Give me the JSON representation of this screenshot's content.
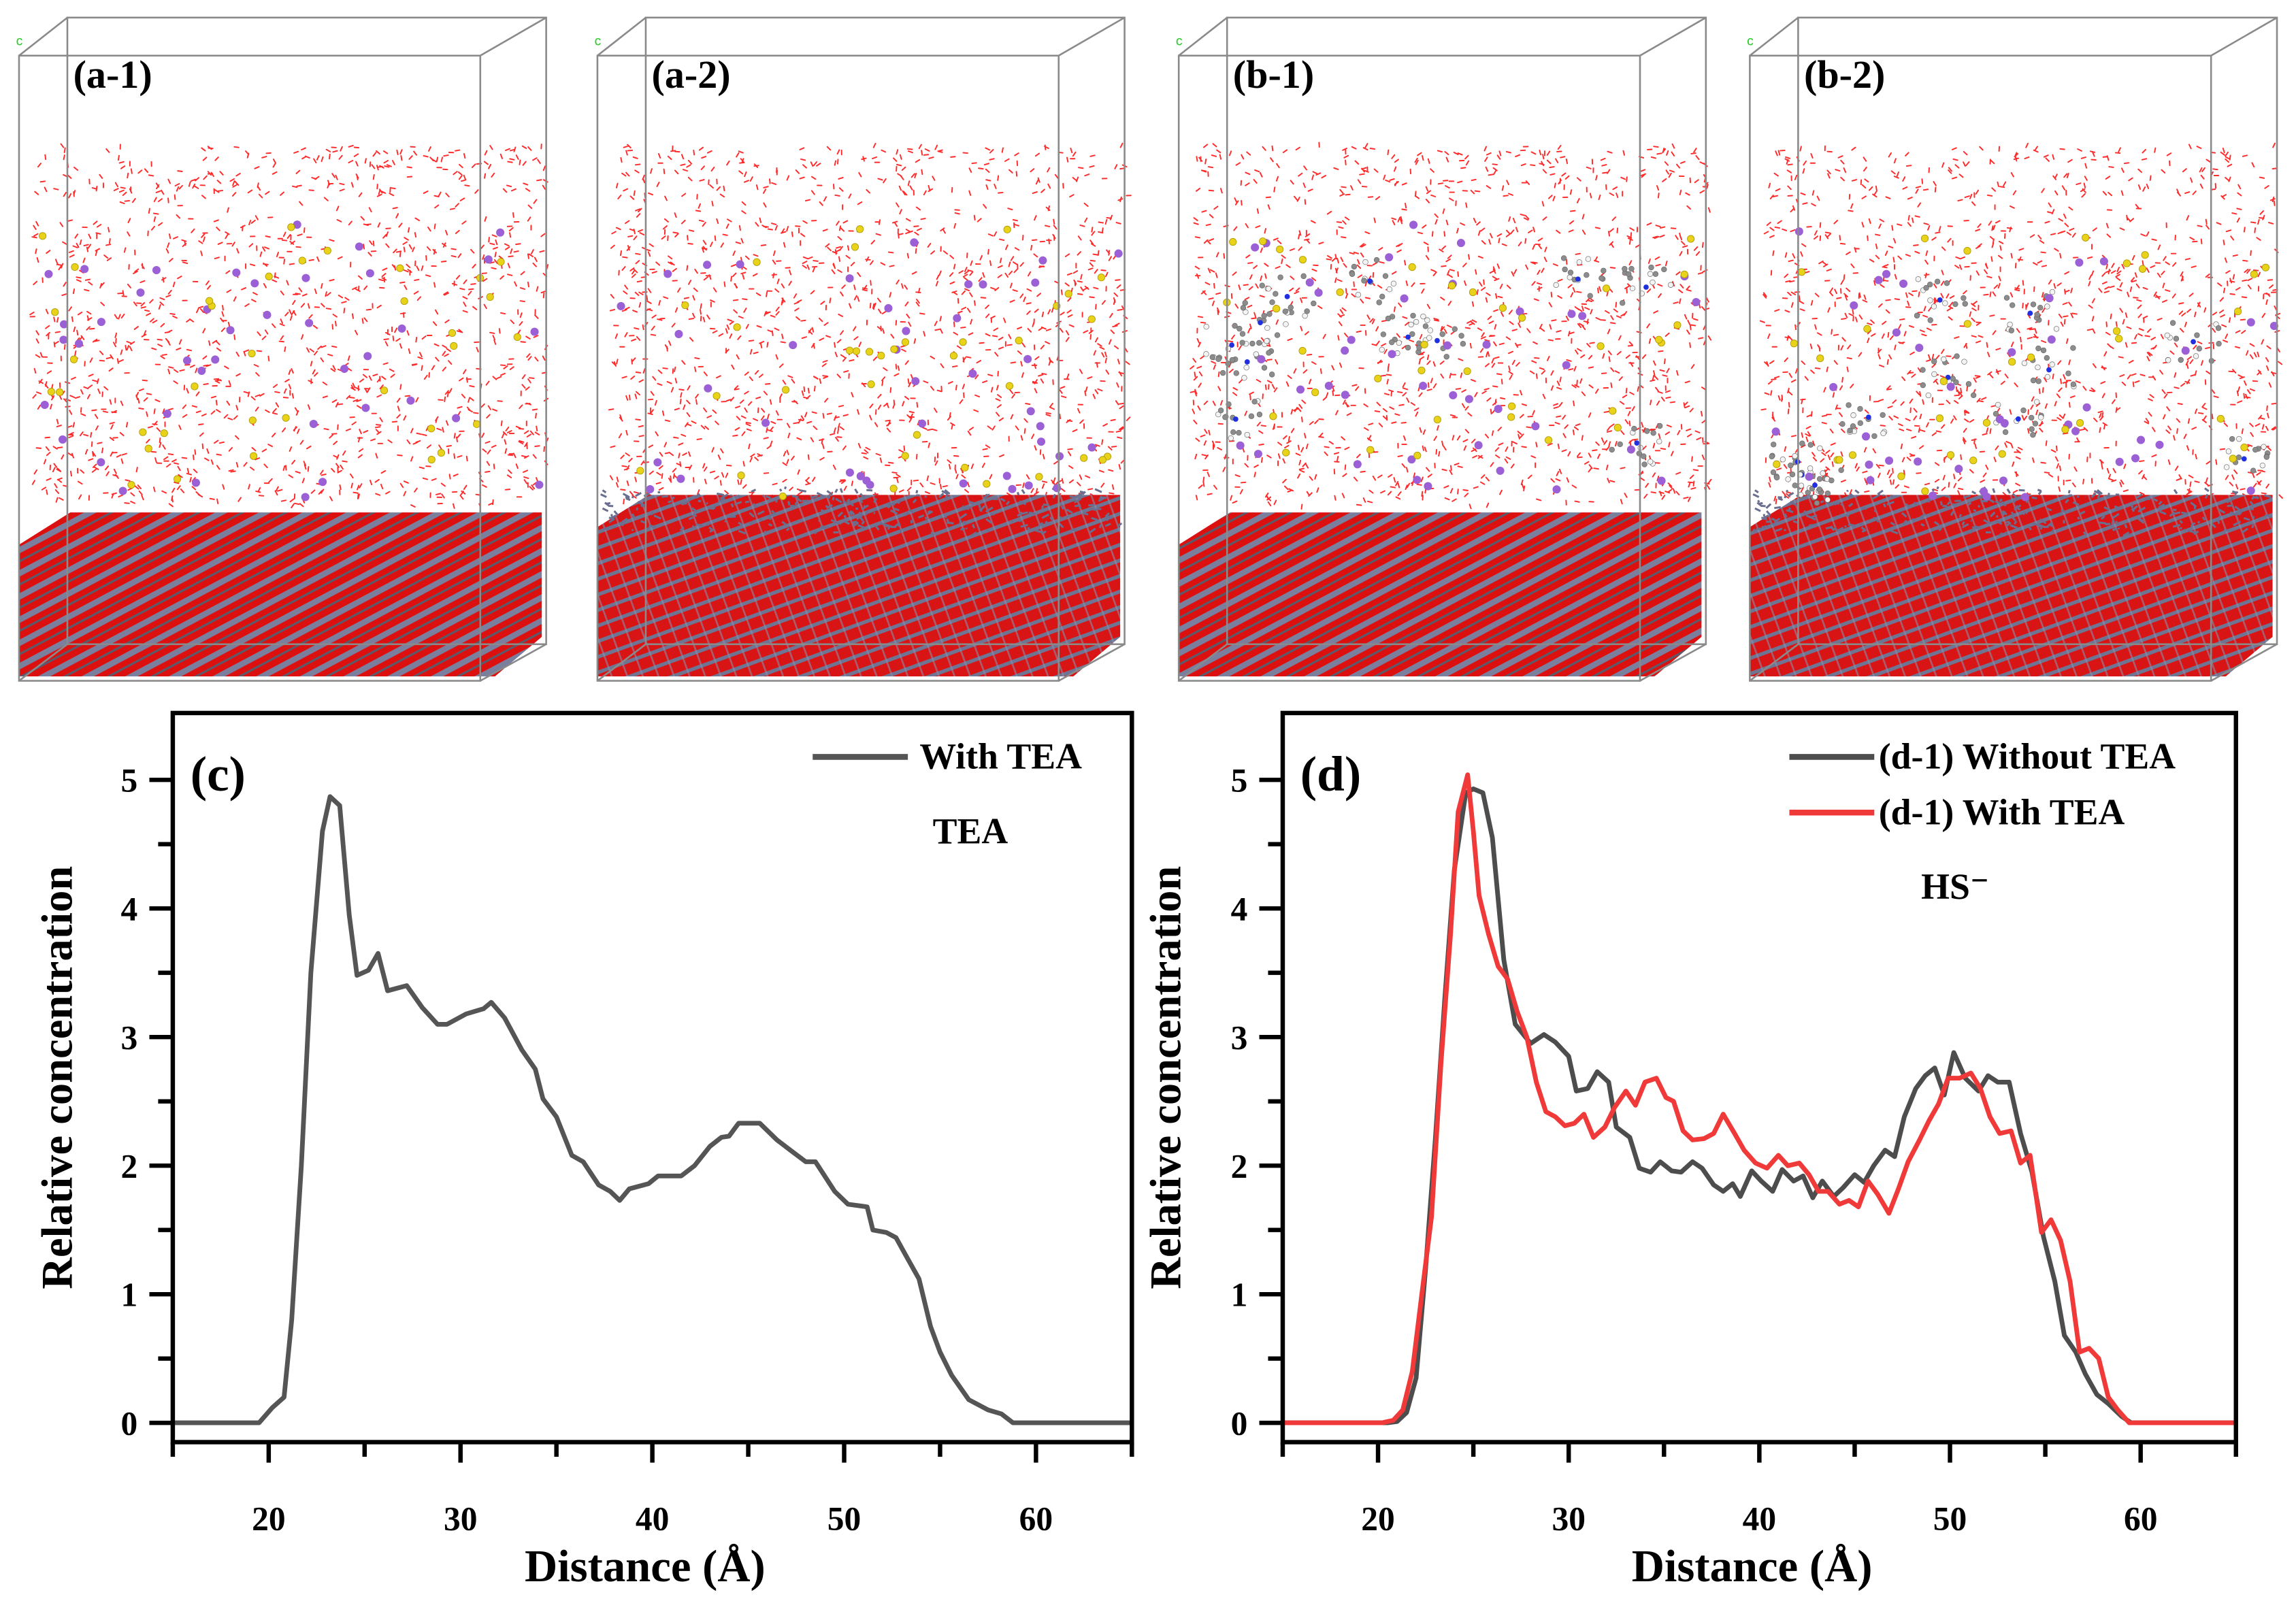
{
  "panels": [
    {
      "label": "(a-1)",
      "tea": false,
      "disordered": false
    },
    {
      "label": "(a-2)",
      "tea": false,
      "disordered": true
    },
    {
      "label": "(b-1)",
      "tea": true,
      "disordered": false
    },
    {
      "label": "(b-2)",
      "tea": true,
      "disordered": true
    }
  ],
  "colors": {
    "water": "#ff2a2a",
    "slab_red": "#dd1010",
    "slab_gray": "#7a7f9e",
    "ion_purple": "#9b5fd6",
    "ion_yellow": "#e8d21a",
    "series_gray": "#4d4d4d",
    "series_red": "#f03a3a"
  },
  "chart_data": [
    {
      "type": "line",
      "panel_label": "(c)",
      "annotation": "TEA",
      "xlabel": "Distance (Å)",
      "ylabel": "Relative concentration",
      "xlim": [
        15,
        65
      ],
      "ylim": [
        -0.15,
        5.52
      ],
      "xticks": [
        20,
        30,
        40,
        50,
        60
      ],
      "yticks": [
        0,
        1,
        2,
        3,
        4,
        5
      ],
      "legend_position": "top-right",
      "series": [
        {
          "name": "With TEA",
          "color": "#555555",
          "x": [
            15,
            19.5,
            20.2,
            20.8,
            21.2,
            21.7,
            22.2,
            22.8,
            23.2,
            23.7,
            24.2,
            24.6,
            25.2,
            25.7,
            26.2,
            27.2,
            28,
            28.8,
            29.3,
            30.3,
            31.2,
            31.6,
            32.3,
            33.2,
            33.9,
            34.3,
            35,
            35.8,
            36.4,
            37.2,
            37.8,
            38.3,
            38.8,
            39.8,
            40.3,
            41.5,
            42.2,
            43,
            43.6,
            44,
            44.5,
            45.6,
            46.5,
            47.2,
            48,
            48.5,
            49.5,
            50.2,
            51.2,
            51.5,
            52.2,
            52.7,
            53.3,
            53.9,
            54.5,
            55,
            55.6,
            56.5,
            57.5,
            58.2,
            58.8,
            65
          ],
          "y": [
            0,
            0,
            0.12,
            0.2,
            0.8,
            2,
            3.5,
            4.6,
            4.87,
            4.8,
            3.95,
            3.48,
            3.52,
            3.65,
            3.36,
            3.4,
            3.23,
            3.1,
            3.1,
            3.18,
            3.22,
            3.27,
            3.15,
            2.9,
            2.75,
            2.52,
            2.38,
            2.08,
            2.03,
            1.85,
            1.8,
            1.73,
            1.82,
            1.86,
            1.92,
            1.92,
            2.0,
            2.15,
            2.22,
            2.23,
            2.33,
            2.33,
            2.2,
            2.12,
            2.03,
            2.03,
            1.8,
            1.7,
            1.68,
            1.5,
            1.48,
            1.44,
            1.28,
            1.12,
            0.75,
            0.55,
            0.37,
            0.18,
            0.1,
            0.07,
            0,
            0
          ]
        }
      ]
    },
    {
      "type": "line",
      "panel_label": "(d)",
      "annotation": "HS⁻",
      "xlabel": "Distance (Å)",
      "ylabel": "Relative concentration",
      "xlim": [
        15,
        65
      ],
      "ylim": [
        -0.15,
        5.52
      ],
      "xticks": [
        20,
        30,
        40,
        50,
        60
      ],
      "yticks": [
        0,
        1,
        2,
        3,
        4,
        5
      ],
      "legend_position": "top-right",
      "series": [
        {
          "name": "(d-1) Without TEA",
          "color": "#4d4d4d",
          "x": [
            15,
            20.5,
            21,
            21.5,
            22,
            22.5,
            23,
            23.5,
            24,
            24.6,
            25,
            25.5,
            26,
            26.6,
            27.2,
            28,
            28.7,
            29.3,
            30,
            30.4,
            31,
            31.5,
            32.1,
            32.5,
            33.2,
            33.7,
            34.3,
            34.8,
            35.4,
            35.9,
            36.5,
            37,
            37.6,
            38.1,
            38.6,
            39,
            39.6,
            40.1,
            40.7,
            41.2,
            41.8,
            42.3,
            42.8,
            43.3,
            43.9,
            44.4,
            45,
            45.5,
            46,
            46.6,
            47.1,
            47.6,
            48.2,
            48.7,
            49.2,
            49.7,
            50.2,
            50.8,
            51.5,
            52,
            52.5,
            53.1,
            53.7,
            54.3,
            54.9,
            55.5,
            56,
            56.6,
            57.1,
            57.7,
            58.3,
            59,
            59.5,
            65
          ],
          "y": [
            0,
            0,
            0.01,
            0.08,
            0.35,
            1.2,
            2.2,
            3.3,
            4.3,
            4.9,
            4.93,
            4.9,
            4.55,
            3.6,
            3.1,
            2.95,
            3.02,
            2.96,
            2.85,
            2.58,
            2.6,
            2.73,
            2.65,
            2.3,
            2.22,
            1.98,
            1.95,
            2.03,
            1.96,
            1.95,
            2.03,
            1.98,
            1.85,
            1.8,
            1.86,
            1.76,
            1.96,
            1.88,
            1.8,
            1.97,
            1.88,
            1.92,
            1.75,
            1.88,
            1.76,
            1.83,
            1.93,
            1.87,
            2.0,
            2.12,
            2.07,
            2.38,
            2.6,
            2.7,
            2.76,
            2.55,
            2.88,
            2.68,
            2.58,
            2.7,
            2.65,
            2.65,
            2.25,
            1.95,
            1.45,
            1.1,
            0.68,
            0.55,
            0.38,
            0.22,
            0.15,
            0.05,
            0,
            0
          ]
        },
        {
          "name": "(d-1) With TEA",
          "color": "#f03a3a",
          "x": [
            15,
            20.2,
            20.8,
            21.3,
            21.8,
            22.3,
            22.8,
            23.3,
            23.8,
            24.2,
            24.7,
            25,
            25.3,
            25.8,
            26.3,
            26.8,
            27.3,
            27.8,
            28.3,
            28.8,
            29.3,
            29.8,
            30.3,
            30.8,
            31.3,
            31.9,
            32.4,
            33,
            33.5,
            34,
            34.6,
            35.1,
            35.5,
            36,
            36.5,
            37.1,
            37.6,
            38.1,
            38.7,
            39.2,
            39.8,
            40.4,
            41,
            41.5,
            42.1,
            42.6,
            43.1,
            43.6,
            44.2,
            44.7,
            45.2,
            45.7,
            46.2,
            46.8,
            47.3,
            47.8,
            48.4,
            48.9,
            49.4,
            49.9,
            50.5,
            51.1,
            51.6,
            52.1,
            52.6,
            53.2,
            53.7,
            54.2,
            54.8,
            55.3,
            55.8,
            56.3,
            56.8,
            57.3,
            57.8,
            58.3,
            58.8,
            59.4,
            65
          ],
          "y": [
            0,
            0,
            0.02,
            0.1,
            0.4,
            1.0,
            1.6,
            2.8,
            3.8,
            4.75,
            5.04,
            4.6,
            4.1,
            3.8,
            3.55,
            3.45,
            3.2,
            3.0,
            2.65,
            2.42,
            2.38,
            2.31,
            2.33,
            2.4,
            2.22,
            2.3,
            2.45,
            2.58,
            2.47,
            2.65,
            2.68,
            2.53,
            2.5,
            2.27,
            2.2,
            2.21,
            2.25,
            2.4,
            2.25,
            2.12,
            2.02,
            1.98,
            2.08,
            2.0,
            2.02,
            1.93,
            1.8,
            1.8,
            1.7,
            1.73,
            1.68,
            1.88,
            1.78,
            1.63,
            1.82,
            2.03,
            2.2,
            2.35,
            2.48,
            2.68,
            2.68,
            2.72,
            2.6,
            2.38,
            2.25,
            2.27,
            2.02,
            2.08,
            1.48,
            1.58,
            1.42,
            1.1,
            0.55,
            0.58,
            0.5,
            0.2,
            0.1,
            0,
            0
          ]
        }
      ]
    }
  ]
}
